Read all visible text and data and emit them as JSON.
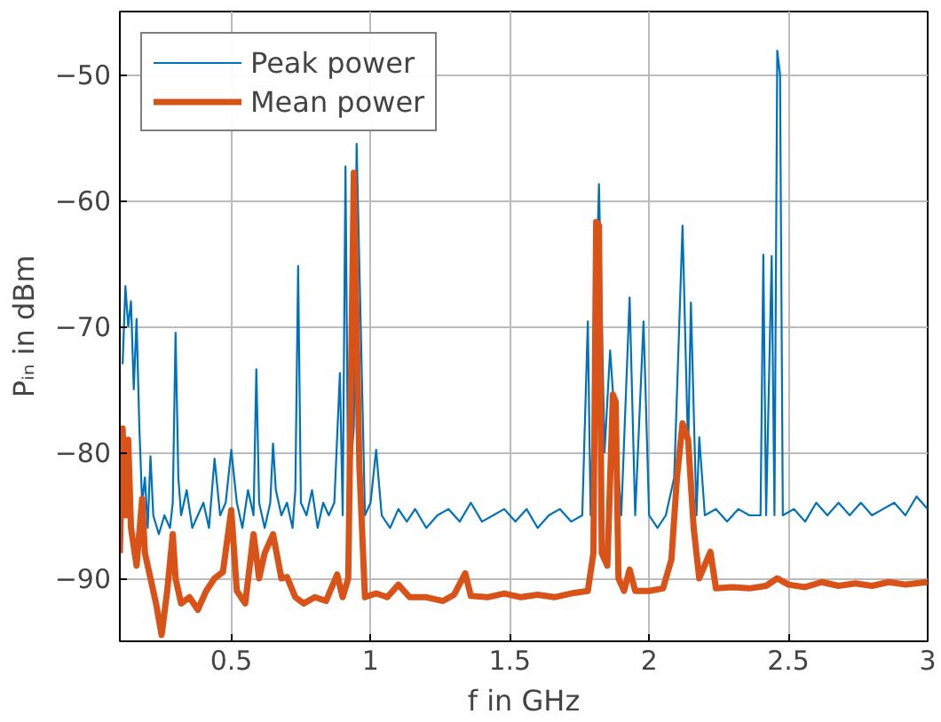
{
  "chart_data": {
    "type": "line",
    "xlabel": "f in GHz",
    "ylabel": "Pᵢₙ in dBm",
    "xlim": [
      0.1,
      3
    ],
    "ylim": [
      -95,
      -45
    ],
    "xticks": [
      0.5,
      1,
      1.5,
      2,
      2.5,
      3
    ],
    "yticks": [
      -90,
      -80,
      -70,
      -60,
      -50
    ],
    "grid": true,
    "legend": "top left",
    "series": [
      {
        "name": "Peak power",
        "color": "#0072bd",
        "x": [
          0.11,
          0.12,
          0.13,
          0.14,
          0.15,
          0.16,
          0.17,
          0.18,
          0.19,
          0.2,
          0.21,
          0.22,
          0.24,
          0.26,
          0.28,
          0.29,
          0.3,
          0.31,
          0.32,
          0.34,
          0.36,
          0.38,
          0.4,
          0.42,
          0.44,
          0.46,
          0.48,
          0.5,
          0.52,
          0.54,
          0.56,
          0.58,
          0.59,
          0.6,
          0.62,
          0.64,
          0.65,
          0.66,
          0.68,
          0.7,
          0.72,
          0.73,
          0.74,
          0.75,
          0.77,
          0.79,
          0.81,
          0.83,
          0.85,
          0.87,
          0.89,
          0.9,
          0.91,
          0.92,
          0.94,
          0.95,
          0.98,
          1.0,
          1.02,
          1.04,
          1.07,
          1.1,
          1.13,
          1.16,
          1.2,
          1.24,
          1.28,
          1.32,
          1.36,
          1.4,
          1.44,
          1.48,
          1.52,
          1.56,
          1.6,
          1.64,
          1.68,
          1.72,
          1.76,
          1.78,
          1.79,
          1.82,
          1.84,
          1.86,
          1.9,
          1.93,
          1.95,
          1.98,
          2.0,
          2.03,
          2.06,
          2.09,
          2.12,
          2.14,
          2.15,
          2.17,
          2.18,
          2.2,
          2.24,
          2.28,
          2.32,
          2.36,
          2.4,
          2.41,
          2.42,
          2.44,
          2.45,
          2.46,
          2.47,
          2.48,
          2.52,
          2.56,
          2.6,
          2.64,
          2.68,
          2.72,
          2.76,
          2.8,
          2.84,
          2.88,
          2.92,
          2.96,
          3.0
        ],
        "values": [
          -73,
          -66.8,
          -70,
          -68,
          -75,
          -69.4,
          -78,
          -84,
          -82,
          -86,
          -80.3,
          -85,
          -86.5,
          -85,
          -86,
          -84,
          -70.5,
          -82,
          -85,
          -83,
          -86,
          -85,
          -84,
          -86,
          -80.5,
          -85,
          -84,
          -79.8,
          -84,
          -86,
          -83,
          -85,
          -73.4,
          -84,
          -86,
          -84,
          -79.3,
          -83,
          -85,
          -84,
          -86,
          -83,
          -65.2,
          -84,
          -85,
          -83,
          -86,
          -84,
          -85,
          -84,
          -73.7,
          -85,
          -57.3,
          -84,
          -78,
          -55.5,
          -85,
          -84,
          -79.8,
          -85,
          -86,
          -84.5,
          -85.5,
          -84.5,
          -86,
          -85,
          -84.5,
          -85.5,
          -84,
          -85.5,
          -85,
          -84.5,
          -85.5,
          -84.5,
          -86,
          -85,
          -84.5,
          -85.5,
          -85,
          -69.6,
          -85,
          -58.7,
          -80,
          -71.9,
          -85,
          -67.7,
          -85,
          -69.6,
          -85,
          -86,
          -85,
          -82,
          -62,
          -80,
          -68.1,
          -85,
          -78.8,
          -85,
          -84.5,
          -85.5,
          -84.5,
          -85,
          -85,
          -64.3,
          -85,
          -64.4,
          -85,
          -48.1,
          -50,
          -85,
          -84.5,
          -85.5,
          -84,
          -85,
          -84,
          -85,
          -84,
          -85,
          -84.5,
          -84,
          -85,
          -83.5,
          -84.5
        ]
      },
      {
        "name": "Mean power",
        "color": "#d95319",
        "x": [
          0.1,
          0.11,
          0.12,
          0.13,
          0.14,
          0.16,
          0.18,
          0.19,
          0.21,
          0.23,
          0.25,
          0.27,
          0.29,
          0.3,
          0.32,
          0.35,
          0.38,
          0.41,
          0.44,
          0.47,
          0.5,
          0.52,
          0.55,
          0.58,
          0.6,
          0.62,
          0.65,
          0.68,
          0.7,
          0.73,
          0.76,
          0.8,
          0.84,
          0.88,
          0.9,
          0.92,
          0.94,
          0.96,
          0.98,
          1.02,
          1.06,
          1.1,
          1.14,
          1.2,
          1.26,
          1.3,
          1.34,
          1.36,
          1.42,
          1.48,
          1.54,
          1.6,
          1.66,
          1.72,
          1.78,
          1.8,
          1.81,
          1.82,
          1.83,
          1.85,
          1.87,
          1.88,
          1.89,
          1.91,
          1.93,
          1.95,
          2.0,
          2.05,
          2.08,
          2.1,
          2.12,
          2.14,
          2.16,
          2.18,
          2.22,
          2.24,
          2.3,
          2.36,
          2.42,
          2.46,
          2.5,
          2.56,
          2.62,
          2.68,
          2.74,
          2.8,
          2.86,
          2.92,
          3.0
        ],
        "values": [
          -88,
          -78.1,
          -85,
          -79,
          -86,
          -89,
          -83.7,
          -88,
          -90,
          -92,
          -94.5,
          -91,
          -86.5,
          -90,
          -92,
          -91.5,
          -92.5,
          -91,
          -90,
          -89.5,
          -84.6,
          -91,
          -92,
          -86.5,
          -90,
          -88,
          -86.5,
          -90,
          -89.9,
          -91.5,
          -92,
          -91.5,
          -91.8,
          -89.7,
          -91.5,
          -90,
          -57.8,
          -81.2,
          -91.5,
          -91.2,
          -91.5,
          -90.5,
          -91.5,
          -91.5,
          -91.8,
          -91.3,
          -89.6,
          -91.4,
          -91.5,
          -91.2,
          -91.5,
          -91.3,
          -91.5,
          -91.2,
          -91,
          -88,
          -61.7,
          -62,
          -88,
          -89,
          -75.4,
          -76,
          -90,
          -91,
          -89.3,
          -91,
          -91,
          -90.8,
          -88.5,
          -82,
          -77.7,
          -79,
          -86,
          -90,
          -87.9,
          -90.8,
          -90.7,
          -90.8,
          -90.6,
          -90,
          -90.5,
          -90.7,
          -90.3,
          -90.6,
          -90.4,
          -90.6,
          -90.3,
          -90.5,
          -90.3
        ]
      }
    ]
  }
}
